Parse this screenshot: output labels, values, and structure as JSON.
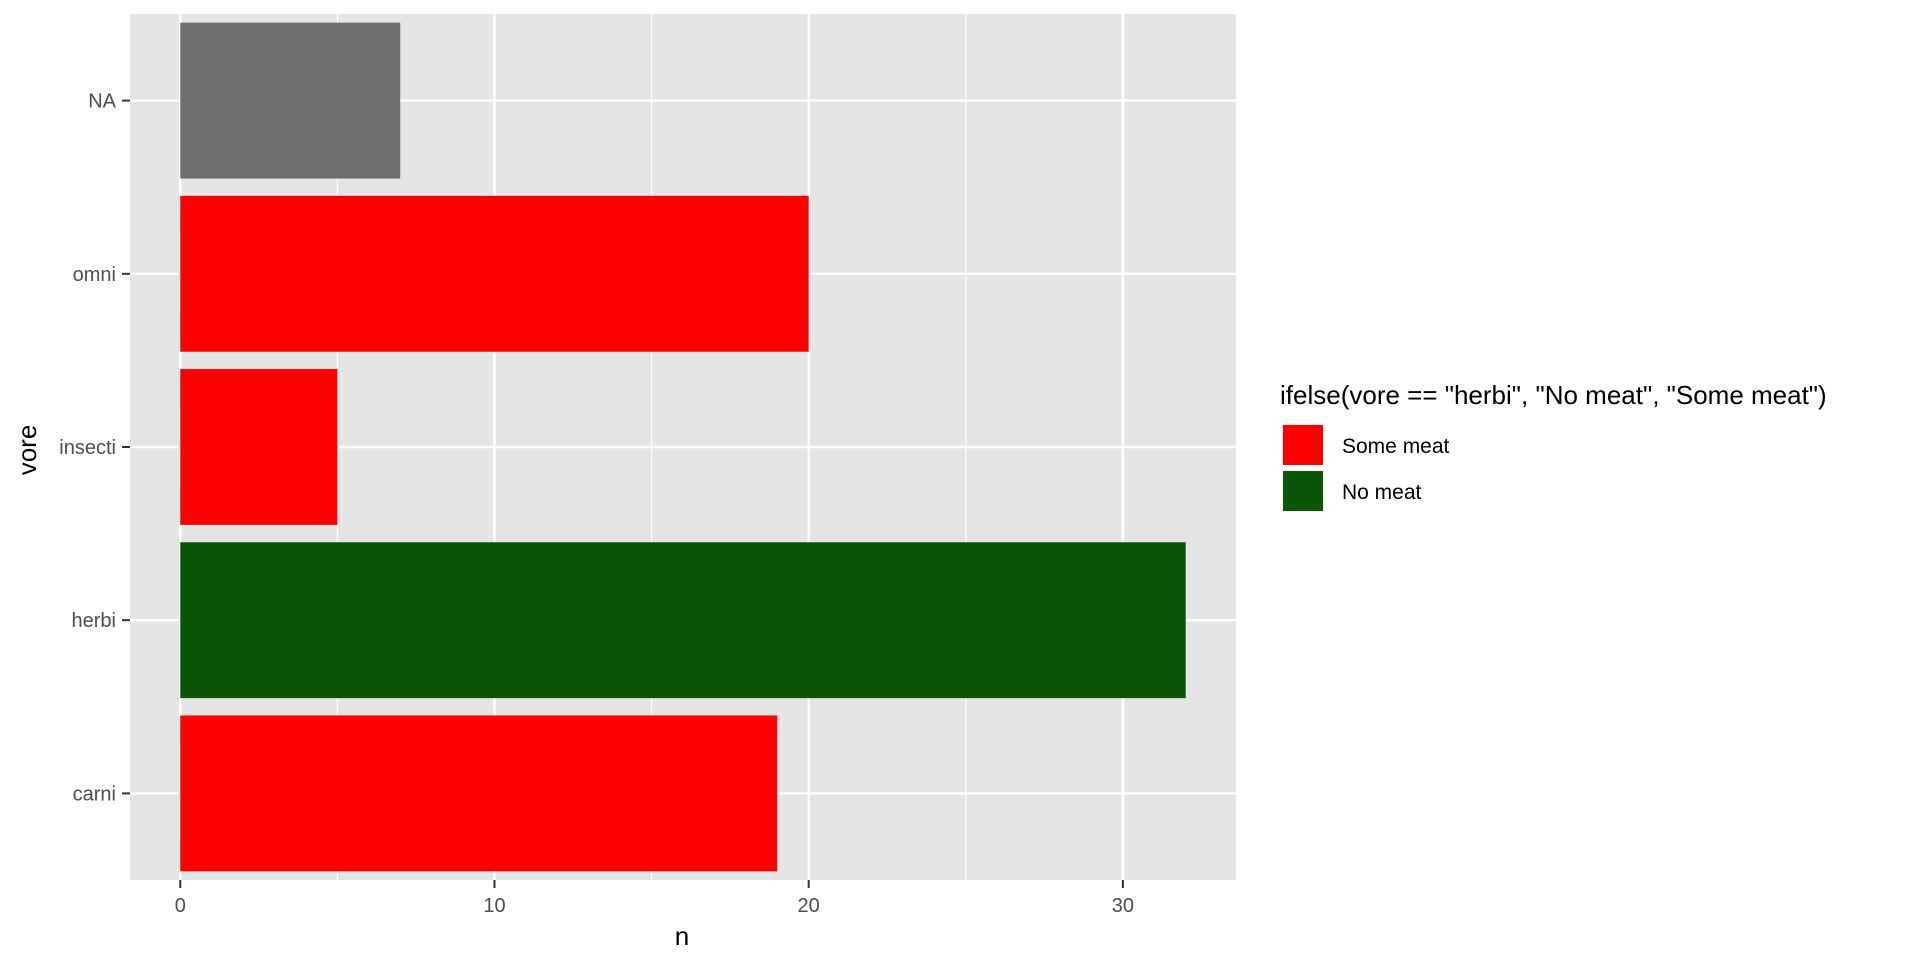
{
  "chart_data": {
    "type": "bar",
    "orientation": "horizontal",
    "categories": [
      "carni",
      "herbi",
      "insecti",
      "omni",
      "NA"
    ],
    "values": [
      19,
      32,
      5,
      20,
      7
    ],
    "groups": [
      "Some meat",
      "No meat",
      "Some meat",
      "Some meat",
      null
    ],
    "xlabel": "n",
    "ylabel": "vore",
    "xlim": [
      -1.6,
      33.6
    ],
    "x_ticks": [
      0,
      10,
      20,
      30
    ],
    "grid": true,
    "legend": {
      "title": "ifelse(vore == \"herbi\", \"No meat\", \"Some meat\")",
      "placement": "right",
      "entries": [
        {
          "label": "Some meat",
          "color": "#ff0000"
        },
        {
          "label": "No meat",
          "color": "#0b5507"
        }
      ]
    },
    "colors": {
      "Some meat": "#ff0000",
      "No meat": "#0b5507",
      "NA": "#6e6e6e",
      "panel": "#e5e5e5",
      "grid": "#ffffff"
    }
  }
}
